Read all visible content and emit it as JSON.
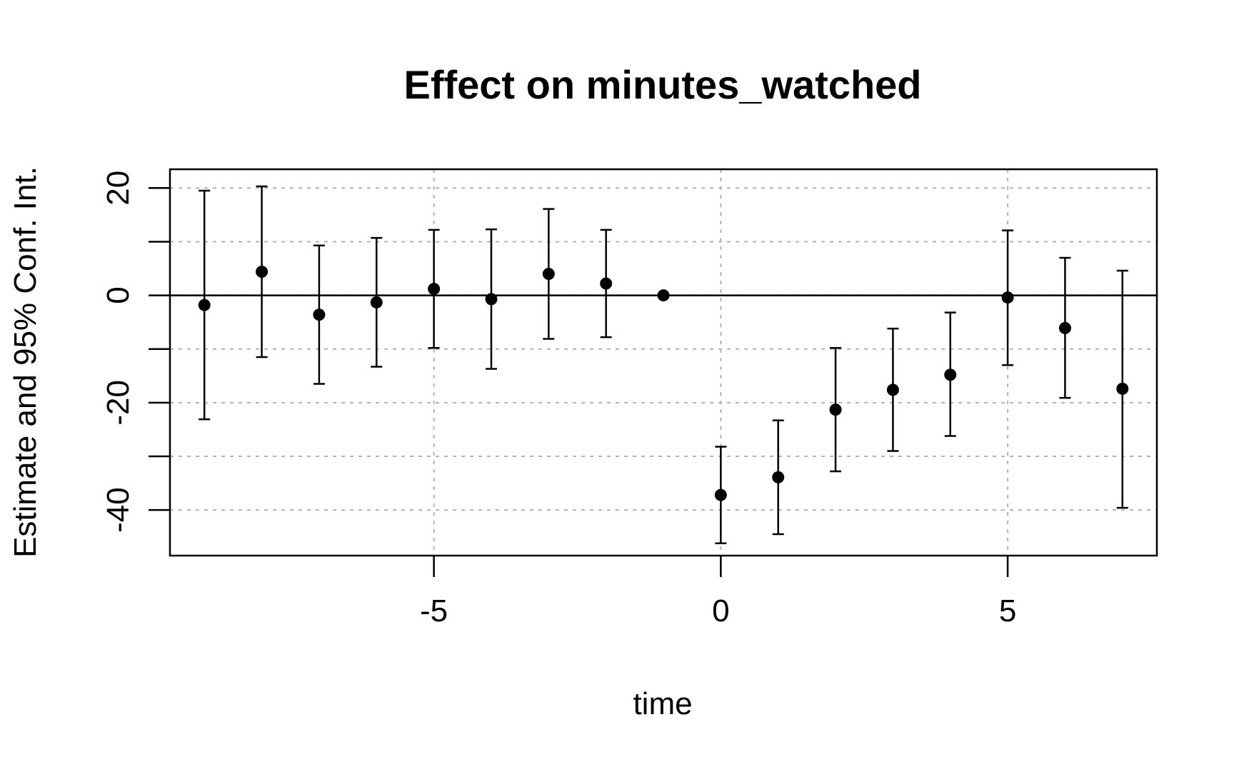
{
  "chart_data": {
    "type": "scatter",
    "title": "Effect on minutes_watched",
    "xlabel": "time",
    "ylabel": "Estimate and 95% Conf. Int.",
    "xlim": [
      -9.6,
      7.6
    ],
    "ylim": [
      -48.5,
      23.5
    ],
    "x_ticks": [
      -5,
      0,
      5
    ],
    "y_ticks": [
      -40,
      -20,
      0,
      20
    ],
    "x_grid": [
      -5,
      0,
      5
    ],
    "y_grid": [
      -40,
      -30,
      -20,
      -10,
      0,
      10,
      20
    ],
    "grid": true,
    "reference_line_y": 0,
    "colors": {
      "points": "#000000",
      "grid": "#b3b3b3",
      "axis": "#000000"
    },
    "series": [
      {
        "points": [
          {
            "x": -9,
            "y": -1.8,
            "lo": -23.1,
            "hi": 19.5
          },
          {
            "x": -8,
            "y": 4.4,
            "lo": -11.5,
            "hi": 20.3
          },
          {
            "x": -7,
            "y": -3.6,
            "lo": -16.5,
            "hi": 9.3
          },
          {
            "x": -6,
            "y": -1.3,
            "lo": -13.3,
            "hi": 10.7
          },
          {
            "x": -5,
            "y": 1.2,
            "lo": -9.8,
            "hi": 12.2
          },
          {
            "x": -4,
            "y": -0.7,
            "lo": -13.7,
            "hi": 12.3
          },
          {
            "x": -3,
            "y": 4.0,
            "lo": -8.1,
            "hi": 16.1
          },
          {
            "x": -2,
            "y": 2.2,
            "lo": -7.8,
            "hi": 12.2
          },
          {
            "x": -1,
            "y": 0.0,
            "lo": 0.0,
            "hi": 0.0
          },
          {
            "x": 0,
            "y": -37.2,
            "lo": -46.2,
            "hi": -28.2
          },
          {
            "x": 1,
            "y": -33.9,
            "lo": -44.5,
            "hi": -23.3
          },
          {
            "x": 2,
            "y": -21.3,
            "lo": -32.8,
            "hi": -9.8
          },
          {
            "x": 3,
            "y": -17.6,
            "lo": -29.0,
            "hi": -6.2
          },
          {
            "x": 4,
            "y": -14.8,
            "lo": -26.2,
            "hi": -3.2
          },
          {
            "x": 5,
            "y": -0.4,
            "lo": -13.0,
            "hi": 12.1
          },
          {
            "x": 6,
            "y": -6.1,
            "lo": -19.1,
            "hi": 7.0
          },
          {
            "x": 7,
            "y": -17.4,
            "lo": -39.6,
            "hi": 4.6
          }
        ]
      }
    ]
  }
}
